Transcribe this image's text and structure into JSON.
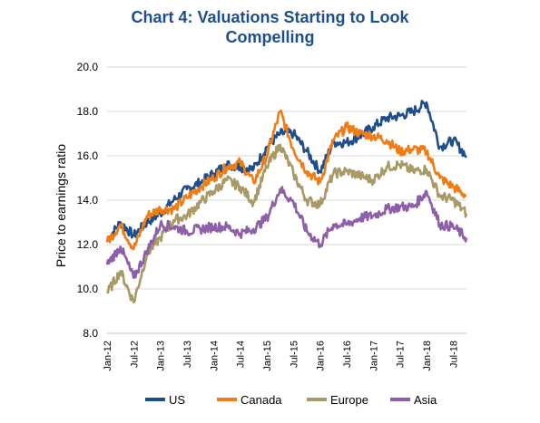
{
  "title_line1": "Chart 4: Valuations Starting to Look",
  "title_line2": "Compelling",
  "chart_data": {
    "type": "line",
    "title": "Chart 4: Valuations Starting to Look Compelling",
    "xlabel": "",
    "ylabel": "Price to earnings ratio",
    "ylim": [
      8.0,
      20.0
    ],
    "y_ticks": [
      "8.0",
      "10.0",
      "12.0",
      "14.0",
      "16.0",
      "18.0",
      "20.0"
    ],
    "x_tick_labels": [
      "Jan-12",
      "Jul-12",
      "Jan-13",
      "Jul-13",
      "Jan-14",
      "Jul-14",
      "Jan-15",
      "Jul-15",
      "Jan-16",
      "Jul-16",
      "Jan-17",
      "Jul-17",
      "Jan-18",
      "Jul-18"
    ],
    "x": [
      "2012-01",
      "2012-04",
      "2012-07",
      "2012-10",
      "2013-01",
      "2013-04",
      "2013-07",
      "2013-10",
      "2014-01",
      "2014-04",
      "2014-07",
      "2014-10",
      "2015-01",
      "2015-04",
      "2015-07",
      "2015-10",
      "2016-01",
      "2016-04",
      "2016-07",
      "2016-10",
      "2017-01",
      "2017-04",
      "2017-07",
      "2017-10",
      "2018-01",
      "2018-04",
      "2018-07",
      "2018-10"
    ],
    "grid": "horizontal",
    "legend_position": "bottom",
    "series": [
      {
        "name": "US",
        "color": "#1f4e8c",
        "values": [
          12.2,
          13.0,
          12.4,
          13.0,
          13.4,
          14.0,
          14.5,
          14.8,
          15.2,
          15.6,
          15.5,
          15.4,
          16.4,
          17.0,
          17.0,
          16.2,
          15.3,
          16.6,
          16.6,
          16.9,
          17.3,
          17.7,
          17.8,
          18.0,
          18.4,
          16.4,
          16.7,
          16.0
        ]
      },
      {
        "name": "Canada",
        "color": "#f07c16",
        "values": [
          12.1,
          12.9,
          11.8,
          13.3,
          13.6,
          13.6,
          14.1,
          14.6,
          15.0,
          15.5,
          15.7,
          14.8,
          16.0,
          18.0,
          16.3,
          15.3,
          14.8,
          16.7,
          17.3,
          17.0,
          16.9,
          16.7,
          16.2,
          16.3,
          16.2,
          15.0,
          14.6,
          14.2
        ]
      },
      {
        "name": "Europe",
        "color": "#a89a66",
        "values": [
          9.8,
          10.8,
          9.4,
          11.6,
          12.3,
          13.1,
          13.3,
          13.9,
          14.4,
          14.9,
          14.6,
          13.9,
          15.5,
          16.5,
          15.2,
          14.0,
          13.8,
          15.2,
          15.3,
          15.1,
          14.9,
          15.5,
          15.6,
          15.3,
          15.4,
          14.2,
          14.0,
          13.4
        ]
      },
      {
        "name": "Asia",
        "color": "#8e5fa8",
        "values": [
          11.1,
          11.9,
          10.5,
          11.7,
          12.9,
          12.8,
          12.6,
          12.7,
          12.8,
          12.8,
          12.5,
          12.7,
          13.2,
          14.5,
          13.9,
          12.6,
          12.0,
          12.9,
          12.9,
          13.2,
          13.3,
          13.6,
          13.7,
          13.7,
          14.4,
          12.9,
          12.8,
          12.3
        ]
      }
    ]
  }
}
